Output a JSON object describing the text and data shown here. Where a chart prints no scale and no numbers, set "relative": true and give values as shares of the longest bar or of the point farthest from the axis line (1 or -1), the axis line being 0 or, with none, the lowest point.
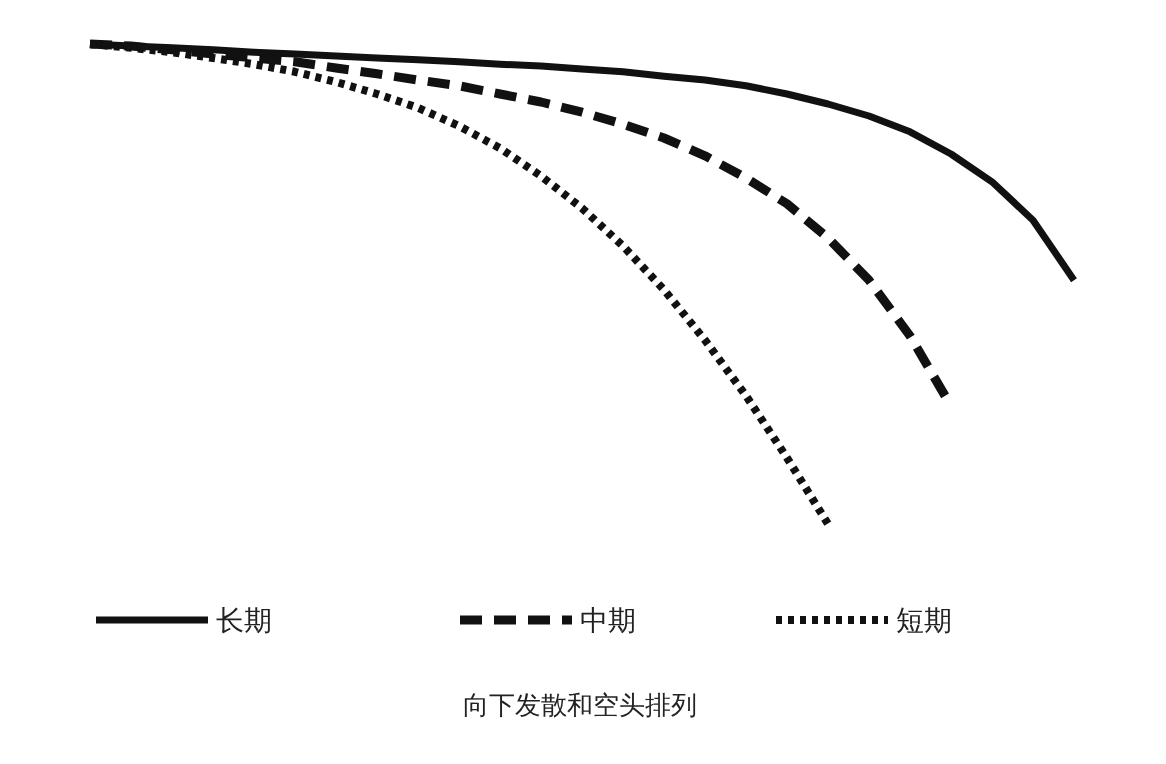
{
  "chart_data": {
    "type": "line",
    "title": "向下发散和空头排列",
    "relative": true,
    "grid": false,
    "legend": "bottom",
    "marker": "none",
    "categories": [
      null,
      null,
      null,
      null,
      null,
      null,
      null,
      null,
      null,
      null,
      null,
      null,
      null,
      null,
      null,
      null,
      null,
      null,
      null,
      null,
      null,
      null,
      null,
      null,
      null
    ],
    "series": [
      {
        "name": "长期",
        "color": "#111111",
        "line_style": "solid",
        "values": [
          1,
          0.996,
          0.992,
          0.988,
          0.983,
          0.979,
          0.975,
          0.971,
          0.967,
          0.963,
          0.958,
          0.954,
          0.948,
          0.942,
          0.933,
          0.925,
          0.913,
          0.896,
          0.875,
          0.85,
          0.817,
          0.771,
          0.713,
          0.633,
          0.508
        ]
      },
      {
        "name": "中期",
        "color": "#111111",
        "line_style": "dashed",
        "values": [
          1,
          0.996,
          0.988,
          0.979,
          0.971,
          0.963,
          0.95,
          0.938,
          0.925,
          0.913,
          0.896,
          0.879,
          0.858,
          0.833,
          0.804,
          0.767,
          0.721,
          0.667,
          0.596,
          0.508,
          0.392,
          0.246,
          null,
          null,
          null
        ]
      },
      {
        "name": "短期",
        "color": "#111111",
        "line_style": "dotted",
        "values": [
          1,
          0.992,
          0.983,
          0.971,
          0.958,
          0.942,
          0.921,
          0.896,
          0.867,
          0.829,
          0.783,
          0.725,
          0.658,
          0.579,
          0.488,
          0.383,
          0.267,
          0.138,
          0,
          null,
          null,
          null,
          null,
          null,
          null
        ]
      }
    ]
  }
}
